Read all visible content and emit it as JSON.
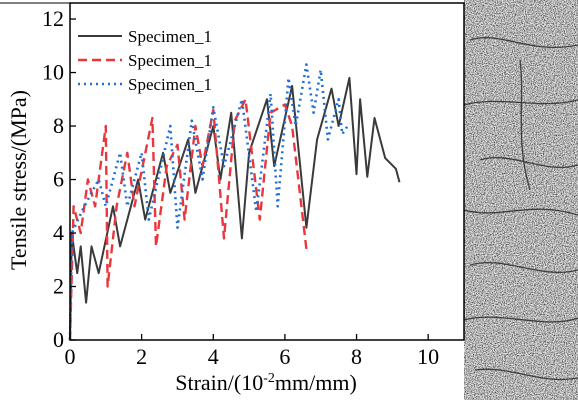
{
  "chart_data": {
    "type": "line",
    "xlabel": [
      "Strain/(10",
      "-2",
      "mm/mm)"
    ],
    "ylabel": "Tensile stress/(MPa)",
    "xlim": [
      0,
      11
    ],
    "xticks": [
      0,
      2,
      4,
      6,
      8,
      10
    ],
    "ylim": [
      0,
      12.6
    ],
    "yticks": [
      0,
      2,
      4,
      6,
      8,
      10,
      12
    ],
    "legend": "upper-left",
    "series": [
      {
        "name": "Specimen_1",
        "color": "#3a3a3a",
        "dash": "solid",
        "x": [
          0,
          0.05,
          0.2,
          0.3,
          0.45,
          0.6,
          0.8,
          1.2,
          1.4,
          1.9,
          2.1,
          2.6,
          2.8,
          3.3,
          3.5,
          4.0,
          4.2,
          4.5,
          4.8,
          5.0,
          5.5,
          5.7,
          6.2,
          6.6,
          6.9,
          7.3,
          7.5,
          7.8,
          8.0,
          8.1,
          8.3,
          8.5,
          8.8,
          9.1,
          9.2
        ],
        "values": [
          0,
          4,
          2.5,
          3.5,
          1.4,
          3.5,
          2.5,
          5,
          3.5,
          6,
          4.5,
          7,
          5.5,
          7.5,
          5.5,
          8,
          6,
          8.5,
          3.8,
          7,
          9,
          6.5,
          9.5,
          4.2,
          7.5,
          9.4,
          8,
          9.8,
          6.2,
          9,
          6.1,
          8.3,
          6.8,
          6.4,
          5.9
        ]
      },
      {
        "name": "Specimen_1",
        "color": "#e8383d",
        "dash": "dashed",
        "x": [
          0,
          0.1,
          0.3,
          0.5,
          0.7,
          1.0,
          1.05,
          1.3,
          1.6,
          1.8,
          2.3,
          2.4,
          2.7,
          3.0,
          3.2,
          3.5,
          3.7,
          4.0,
          4.3,
          4.6,
          4.9,
          5.3,
          5.6,
          6.0,
          6.2,
          6.6
        ],
        "values": [
          0,
          5,
          4,
          6,
          5,
          8,
          2,
          5,
          7,
          5,
          8.3,
          3.5,
          6.5,
          7.3,
          4.5,
          8,
          6.5,
          8.6,
          3.8,
          8.2,
          9,
          4.5,
          8.5,
          8.8,
          8,
          3.4
        ]
      },
      {
        "name": "Specimen_1",
        "color": "#1f6fd6",
        "dash": "dotted",
        "x": [
          0,
          0.05,
          0.4,
          0.8,
          1.0,
          1.4,
          1.6,
          2.0,
          2.2,
          2.8,
          3.0,
          3.4,
          3.7,
          4.0,
          4.3,
          4.8,
          5.2,
          5.6,
          5.8,
          6.1,
          6.3,
          6.6,
          6.8,
          7.0,
          7.2,
          7.5,
          7.6,
          7.8
        ],
        "values": [
          0,
          4,
          5,
          6,
          5,
          7,
          5,
          7,
          4.5,
          8,
          4.2,
          8.2,
          6,
          8.7,
          6.5,
          9,
          4.8,
          9.2,
          5,
          9.8,
          8,
          10.3,
          8.5,
          10.1,
          7.5,
          9,
          7.7,
          8.1
        ]
      }
    ]
  }
}
